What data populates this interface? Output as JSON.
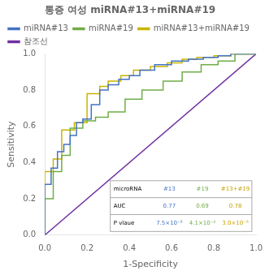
{
  "chart_data": {
    "type": "line",
    "title": "통증 여성 miRNA#13+miRNA#19",
    "xlabel": "1-Specificity",
    "ylabel": "Sensitivity",
    "xlim": [
      0,
      1
    ],
    "ylim": [
      0,
      1
    ],
    "xticks": [
      {
        "value": 0,
        "label": "0.0"
      },
      0.2,
      0.4,
      0.6,
      0.8,
      {
        "value": 1,
        "label": "1.0"
      }
    ],
    "yticks": [
      {
        "value": 0,
        "label": "0.0"
      },
      0.2,
      0.4,
      0.6,
      0.8,
      {
        "value": 1,
        "label": "1.0"
      }
    ],
    "grid": false,
    "legend": "upper left",
    "series": [
      {
        "name": "miRNA#13",
        "color": "#4472c4",
        "x": [
          0.0,
          0.0,
          0.03,
          0.03,
          0.06,
          0.06,
          0.09,
          0.09,
          0.12,
          0.12,
          0.15,
          0.15,
          0.18,
          0.18,
          0.22,
          0.22,
          0.26,
          0.26,
          0.3,
          0.3,
          0.35,
          0.35,
          0.4,
          0.4,
          0.45,
          0.45,
          0.52,
          0.52,
          0.6,
          0.6,
          0.68,
          0.68,
          0.75,
          0.75,
          0.82,
          0.82,
          0.88,
          0.88,
          0.94,
          0.94,
          1.0
        ],
        "values": [
          0.0,
          0.28,
          0.28,
          0.37,
          0.37,
          0.46,
          0.46,
          0.5,
          0.5,
          0.55,
          0.55,
          0.62,
          0.62,
          0.64,
          0.64,
          0.72,
          0.72,
          0.8,
          0.8,
          0.83,
          0.83,
          0.86,
          0.86,
          0.88,
          0.88,
          0.91,
          0.91,
          0.94,
          0.94,
          0.96,
          0.96,
          0.97,
          0.97,
          0.98,
          0.98,
          0.99,
          0.99,
          1.0,
          1.0,
          1.0,
          1.0
        ]
      },
      {
        "name": "miRNA#19",
        "color": "#70ad47",
        "x": [
          0.0,
          0.0,
          0.04,
          0.04,
          0.08,
          0.08,
          0.12,
          0.12,
          0.18,
          0.18,
          0.24,
          0.24,
          0.3,
          0.3,
          0.38,
          0.38,
          0.46,
          0.46,
          0.56,
          0.56,
          0.65,
          0.65,
          0.74,
          0.74,
          0.82,
          0.82,
          0.9,
          0.9,
          1.0
        ],
        "values": [
          0.0,
          0.2,
          0.2,
          0.35,
          0.35,
          0.44,
          0.44,
          0.59,
          0.59,
          0.63,
          0.63,
          0.65,
          0.65,
          0.68,
          0.68,
          0.75,
          0.75,
          0.8,
          0.8,
          0.85,
          0.85,
          0.9,
          0.9,
          0.94,
          0.94,
          0.96,
          0.96,
          1.0,
          1.0
        ]
      },
      {
        "name": "miRNA#13+miRNA#19",
        "color": "#c8b400",
        "x": [
          0.0,
          0.0,
          0.04,
          0.04,
          0.08,
          0.08,
          0.14,
          0.14,
          0.2,
          0.2,
          0.26,
          0.26,
          0.3,
          0.3,
          0.36,
          0.36,
          0.42,
          0.42,
          0.5,
          0.5,
          0.58,
          0.58,
          0.65,
          0.65,
          0.72,
          0.72,
          0.8,
          0.8,
          0.88,
          0.88,
          0.95,
          0.95,
          1.0
        ],
        "values": [
          0.0,
          0.35,
          0.35,
          0.42,
          0.42,
          0.58,
          0.58,
          0.62,
          0.62,
          0.78,
          0.78,
          0.82,
          0.82,
          0.85,
          0.85,
          0.88,
          0.88,
          0.91,
          0.91,
          0.93,
          0.93,
          0.95,
          0.95,
          0.97,
          0.97,
          0.98,
          0.98,
          0.99,
          0.99,
          1.0,
          1.0,
          1.0,
          1.0
        ]
      },
      {
        "name": "참조선",
        "color": "#7030a0",
        "x": [
          0,
          1
        ],
        "values": [
          0,
          1
        ]
      }
    ],
    "table": {
      "rows": [
        [
          "microRNA",
          "#13",
          "#19",
          "#13+#19"
        ],
        [
          "AUC",
          "0.77",
          "0.69",
          "0.78"
        ],
        [
          "P vlaue",
          "7.5×10⁻⁵",
          "4.1×10⁻³",
          "3.0×10⁻⁵"
        ]
      ],
      "colors": [
        "#000000",
        "#4472c4",
        "#70ad47",
        "#c8a000"
      ]
    }
  }
}
